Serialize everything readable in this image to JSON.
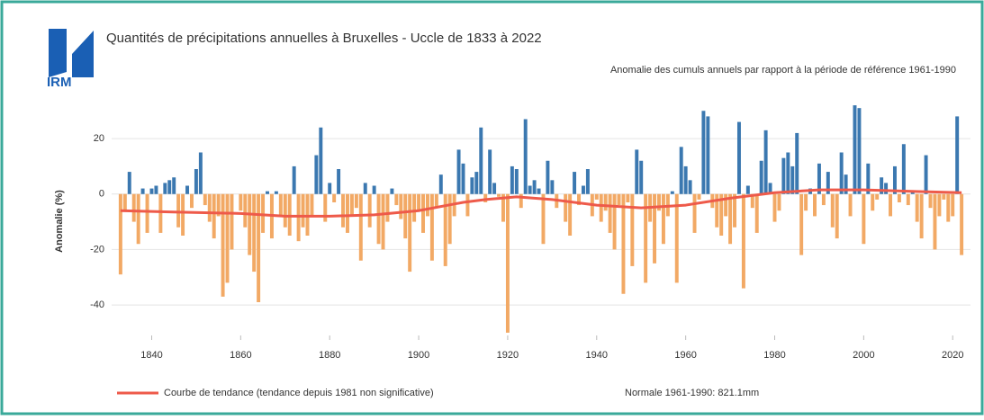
{
  "chart_data": {
    "type": "bar",
    "logo": "IRM",
    "title": "Quantités de précipitations annuelles à Bruxelles - Uccle de 1833 à 2022",
    "subtitle": "Anomalie des cumuls annuels par rapport à la période de référence 1961-1990",
    "ylabel": "Anomalie (%)",
    "xlim": [
      1831,
      2024
    ],
    "xticks": [
      1840,
      1860,
      1880,
      1900,
      1920,
      1940,
      1960,
      1980,
      2000,
      2020
    ],
    "ylim": [
      -51,
      33
    ],
    "yticks": [
      -40,
      -20,
      0,
      20
    ],
    "grid": true,
    "positive_color": "#3b78b0",
    "negative_color": "#f2a965",
    "x": [
      1833,
      1834,
      1835,
      1836,
      1837,
      1838,
      1839,
      1840,
      1841,
      1842,
      1843,
      1844,
      1845,
      1846,
      1847,
      1848,
      1849,
      1850,
      1851,
      1852,
      1853,
      1854,
      1855,
      1856,
      1857,
      1858,
      1859,
      1860,
      1861,
      1862,
      1863,
      1864,
      1865,
      1866,
      1867,
      1868,
      1869,
      1870,
      1871,
      1872,
      1873,
      1874,
      1875,
      1876,
      1877,
      1878,
      1879,
      1880,
      1881,
      1882,
      1883,
      1884,
      1885,
      1886,
      1887,
      1888,
      1889,
      1890,
      1891,
      1892,
      1893,
      1894,
      1895,
      1896,
      1897,
      1898,
      1899,
      1900,
      1901,
      1902,
      1903,
      1904,
      1905,
      1906,
      1907,
      1908,
      1909,
      1910,
      1911,
      1912,
      1913,
      1914,
      1915,
      1916,
      1917,
      1918,
      1919,
      1920,
      1921,
      1922,
      1923,
      1924,
      1925,
      1926,
      1927,
      1928,
      1929,
      1930,
      1931,
      1932,
      1933,
      1934,
      1935,
      1936,
      1937,
      1938,
      1939,
      1940,
      1941,
      1942,
      1943,
      1944,
      1945,
      1946,
      1947,
      1948,
      1949,
      1950,
      1951,
      1952,
      1953,
      1954,
      1955,
      1956,
      1957,
      1958,
      1959,
      1960,
      1961,
      1962,
      1963,
      1964,
      1965,
      1966,
      1967,
      1968,
      1969,
      1970,
      1971,
      1972,
      1973,
      1974,
      1975,
      1976,
      1977,
      1978,
      1979,
      1980,
      1981,
      1982,
      1983,
      1984,
      1985,
      1986,
      1987,
      1988,
      1989,
      1990,
      1991,
      1992,
      1993,
      1994,
      1995,
      1996,
      1997,
      1998,
      1999,
      2000,
      2001,
      2002,
      2003,
      2004,
      2005,
      2006,
      2007,
      2008,
      2009,
      2010,
      2011,
      2012,
      2013,
      2014,
      2015,
      2016,
      2017,
      2018,
      2019,
      2020,
      2021,
      2022
    ],
    "values": [
      -29,
      -6,
      8,
      -10,
      -18,
      2,
      -14,
      2,
      3,
      -14,
      4,
      5,
      6,
      -12,
      -15,
      3,
      -5,
      9,
      15,
      -4,
      -10,
      -16,
      -8,
      -37,
      -32,
      -20,
      0,
      -6,
      -12,
      -22,
      -28,
      -39,
      -14,
      1,
      -16,
      1,
      -8,
      -12,
      -15,
      10,
      -17,
      -12,
      -15,
      -8,
      14,
      24,
      -10,
      4,
      -3,
      9,
      -12,
      -14,
      -8,
      -5,
      -24,
      4,
      -12,
      3,
      -18,
      -20,
      -10,
      2,
      -4,
      -9,
      -16,
      -28,
      -10,
      -6,
      -14,
      -8,
      -24,
      -5,
      7,
      -26,
      -18,
      -8,
      16,
      11,
      -8,
      6,
      8,
      24,
      -3,
      16,
      4,
      -1,
      -10,
      -50,
      10,
      9,
      -5,
      27,
      3,
      5,
      2,
      -18,
      12,
      5,
      -5,
      0,
      -10,
      -15,
      8,
      -4,
      3,
      9,
      -8,
      -2,
      -10,
      -6,
      -14,
      -20,
      -4,
      -36,
      -3,
      -26,
      16,
      12,
      -32,
      -10,
      -25,
      -6,
      -18,
      -8,
      1,
      -32,
      17,
      10,
      5,
      -14,
      -2,
      30,
      28,
      -5,
      -12,
      -15,
      -8,
      -18,
      -12,
      26,
      -34,
      3,
      -5,
      -14,
      12,
      23,
      4,
      -10,
      -6,
      13,
      15,
      10,
      22,
      -22,
      -6,
      2,
      -8,
      11,
      -4,
      8,
      -12,
      -16,
      15,
      7,
      -8,
      32,
      31,
      -18,
      11,
      -6,
      -2,
      6,
      4,
      -8,
      10,
      -3,
      18,
      -4,
      1,
      -10,
      -16,
      14,
      -5,
      -20,
      -8,
      -2,
      -10,
      -8,
      28,
      -22
    ],
    "trend": {
      "name": "Courbe de tendance (tendance depuis 1981 non significative)",
      "color": "#ee5a4a",
      "x": [
        1833,
        1845,
        1860,
        1870,
        1880,
        1890,
        1900,
        1910,
        1915,
        1922,
        1930,
        1940,
        1950,
        1960,
        1970,
        1980,
        1990,
        2000,
        2010,
        2022
      ],
      "values": [
        -6,
        -6.5,
        -7,
        -8,
        -8,
        -7.5,
        -6,
        -3,
        -2,
        -1,
        -2,
        -4,
        -5,
        -4,
        -1.5,
        0.5,
        1.5,
        1.5,
        1,
        0.5
      ]
    },
    "note": "Normale 1961-1990: 821.1mm"
  }
}
